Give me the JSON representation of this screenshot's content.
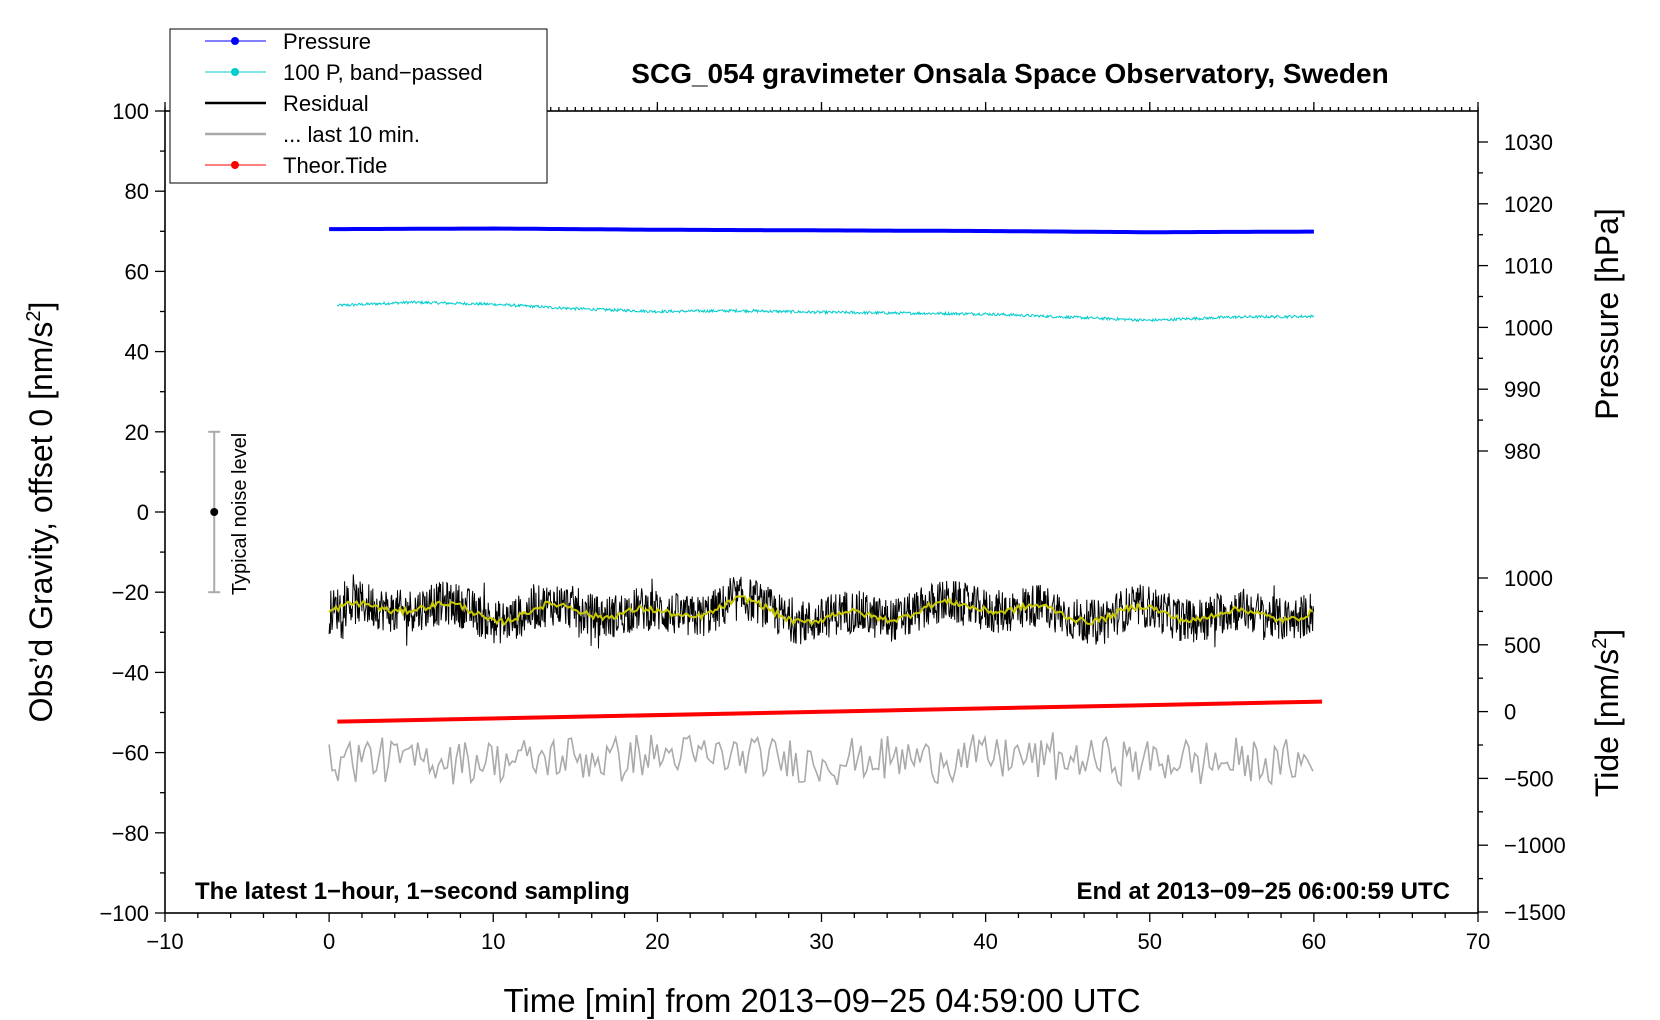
{
  "chart_data": {
    "type": "line",
    "title": "SCG_054 gravimeter Onsala Space Observatory, Sweden",
    "xlabel": "Time [min] from 2013−09−25 04:59:00 UTC",
    "ylabel_left_main": "Obs’d Gravity, offset 0 [nm/s",
    "ylabel_left_sup": "2",
    "ylabel_left_end": "]",
    "ylabel_right_top": "Pressure [hPa]",
    "ylabel_right_bottom_main": "Tide [nm/s",
    "ylabel_right_bottom_sup": "2",
    "ylabel_right_bottom_end": "]",
    "xlim": [
      -10,
      70
    ],
    "ylim": [
      -100,
      100
    ],
    "pressure_lim": [
      980,
      1030
    ],
    "tide_lim": [
      -1500,
      1000
    ],
    "x_ticks": [
      "−10",
      "0",
      "10",
      "20",
      "30",
      "40",
      "50",
      "60",
      "70"
    ],
    "y_ticks": [
      "100",
      "80",
      "60",
      "40",
      "20",
      "0",
      "−20",
      "−40",
      "−60",
      "−80",
      "−100"
    ],
    "pressure_ticks": [
      "1030",
      "1020",
      "1010",
      "1000",
      "990",
      "980"
    ],
    "tide_ticks": [
      "1000",
      "500",
      "0",
      "−500",
      "−1000",
      "−1500"
    ],
    "annotation_left": "The latest 1−hour, 1−second sampling",
    "annotation_right": "End at 2013−09−25 06:00:59 UTC",
    "noise_label": "Typical noise level",
    "noise_bar": {
      "x": -7,
      "center": 0,
      "half_range": 20
    },
    "legend": [
      {
        "label": "Pressure",
        "color": "#0000ff",
        "marker": true
      },
      {
        "label": "100 P, band−passed",
        "color": "#00cccc",
        "marker": true
      },
      {
        "label": "Residual",
        "color": "#000000",
        "marker": false
      },
      {
        "label": "... last 10 min.",
        "color": "#aaaaaa",
        "marker": false
      },
      {
        "label": "Theor.Tide",
        "color": "#ff0000",
        "marker": true
      }
    ],
    "series": [
      {
        "name": "Pressure",
        "color": "#0000ff",
        "axis": "pressure",
        "x": [
          0,
          10,
          20,
          30,
          40,
          50,
          60
        ],
        "values": [
          1015.9,
          1016.0,
          1015.8,
          1015.7,
          1015.6,
          1015.4,
          1015.5
        ]
      },
      {
        "name": "100 P, band−passed",
        "color": "#00cccc",
        "axis": "left",
        "x": [
          0.5,
          5,
          10,
          15,
          20,
          25,
          30,
          35,
          40,
          45,
          50,
          55,
          60
        ],
        "values": [
          51.5,
          52.3,
          51.8,
          50.7,
          50.0,
          50.2,
          49.8,
          49.6,
          49.4,
          48.6,
          47.8,
          48.6,
          48.8
        ]
      },
      {
        "name": "Residual",
        "color": "#000000",
        "axis": "left",
        "x": [
          0,
          5,
          10,
          15,
          20,
          25,
          30,
          35,
          40,
          45,
          50,
          55,
          60
        ],
        "values": [
          -25,
          -23,
          -26,
          -24,
          -26,
          -23,
          -27,
          -25,
          -23,
          -26,
          -25,
          -26,
          -25
        ]
      },
      {
        "name": "... last 10 min.",
        "color": "#aaaaaa",
        "axis": "left",
        "x": [
          0,
          10,
          20,
          30,
          40,
          50,
          60
        ],
        "values": [
          -61,
          -62,
          -61,
          -62,
          -61,
          -62,
          -63
        ]
      },
      {
        "name": "Theor.Tide",
        "color": "#ff0000",
        "axis": "tide",
        "x": [
          0.5,
          60.5
        ],
        "values": [
          -75,
          75
        ]
      }
    ]
  }
}
